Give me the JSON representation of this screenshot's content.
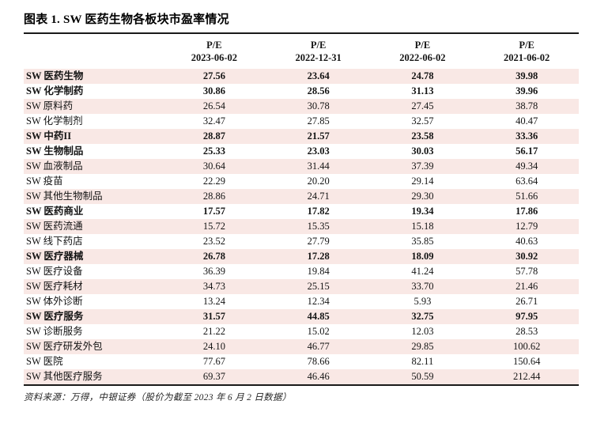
{
  "title": "图表 1. SW 医药生物各板块市盈率情况",
  "colors": {
    "row_highlight": "#f9e8e5",
    "rule_line": "#1a1a1a"
  },
  "table": {
    "columns": [
      {
        "pe": "P/E",
        "date": "2023-06-02"
      },
      {
        "pe": "P/E",
        "date": "2022-12-31"
      },
      {
        "pe": "P/E",
        "date": "2022-06-02"
      },
      {
        "pe": "P/E",
        "date": "2021-06-02"
      }
    ],
    "rows": [
      {
        "label": "SW 医药生物",
        "bold": true,
        "values": [
          "27.56",
          "23.64",
          "24.78",
          "39.98"
        ]
      },
      {
        "label": "SW 化学制药",
        "bold": true,
        "values": [
          "30.86",
          "28.56",
          "31.13",
          "39.96"
        ]
      },
      {
        "label": "SW 原料药",
        "bold": false,
        "values": [
          "26.54",
          "30.78",
          "27.45",
          "38.78"
        ]
      },
      {
        "label": "SW 化学制剂",
        "bold": false,
        "values": [
          "32.47",
          "27.85",
          "32.57",
          "40.47"
        ]
      },
      {
        "label": "SW 中药II",
        "bold": true,
        "values": [
          "28.87",
          "21.57",
          "23.58",
          "33.36"
        ]
      },
      {
        "label": "SW 生物制品",
        "bold": true,
        "values": [
          "25.33",
          "23.03",
          "30.03",
          "56.17"
        ]
      },
      {
        "label": "SW 血液制品",
        "bold": false,
        "values": [
          "30.64",
          "31.44",
          "37.39",
          "49.34"
        ]
      },
      {
        "label": "SW 疫苗",
        "bold": false,
        "values": [
          "22.29",
          "20.20",
          "29.14",
          "63.64"
        ]
      },
      {
        "label": "SW 其他生物制品",
        "bold": false,
        "values": [
          "28.86",
          "24.71",
          "29.30",
          "51.66"
        ]
      },
      {
        "label": "SW 医药商业",
        "bold": true,
        "values": [
          "17.57",
          "17.82",
          "19.34",
          "17.86"
        ]
      },
      {
        "label": "SW 医药流通",
        "bold": false,
        "values": [
          "15.72",
          "15.35",
          "15.18",
          "12.79"
        ]
      },
      {
        "label": "SW 线下药店",
        "bold": false,
        "values": [
          "23.52",
          "27.79",
          "35.85",
          "40.63"
        ]
      },
      {
        "label": "SW 医疗器械",
        "bold": true,
        "values": [
          "26.78",
          "17.28",
          "18.09",
          "30.92"
        ]
      },
      {
        "label": "SW 医疗设备",
        "bold": false,
        "values": [
          "36.39",
          "19.84",
          "41.24",
          "57.78"
        ]
      },
      {
        "label": "SW 医疗耗材",
        "bold": false,
        "values": [
          "34.73",
          "25.15",
          "33.70",
          "21.46"
        ]
      },
      {
        "label": "SW 体外诊断",
        "bold": false,
        "values": [
          "13.24",
          "12.34",
          "5.93",
          "26.71"
        ]
      },
      {
        "label": "SW 医疗服务",
        "bold": true,
        "values": [
          "31.57",
          "44.85",
          "32.75",
          "97.95"
        ]
      },
      {
        "label": "SW 诊断服务",
        "bold": false,
        "values": [
          "21.22",
          "15.02",
          "12.03",
          "28.53"
        ]
      },
      {
        "label": "SW 医疗研发外包",
        "bold": false,
        "values": [
          "24.10",
          "46.77",
          "29.85",
          "100.62"
        ]
      },
      {
        "label": "SW 医院",
        "bold": false,
        "values": [
          "77.67",
          "78.66",
          "82.11",
          "150.64"
        ]
      },
      {
        "label": "SW 其他医疗服务",
        "bold": false,
        "values": [
          "69.37",
          "46.46",
          "50.59",
          "212.44"
        ]
      }
    ]
  },
  "footer": {
    "text": "资料来源：万得，中银证券（股价为截至 2023 年 6 月 2 日数据）"
  }
}
